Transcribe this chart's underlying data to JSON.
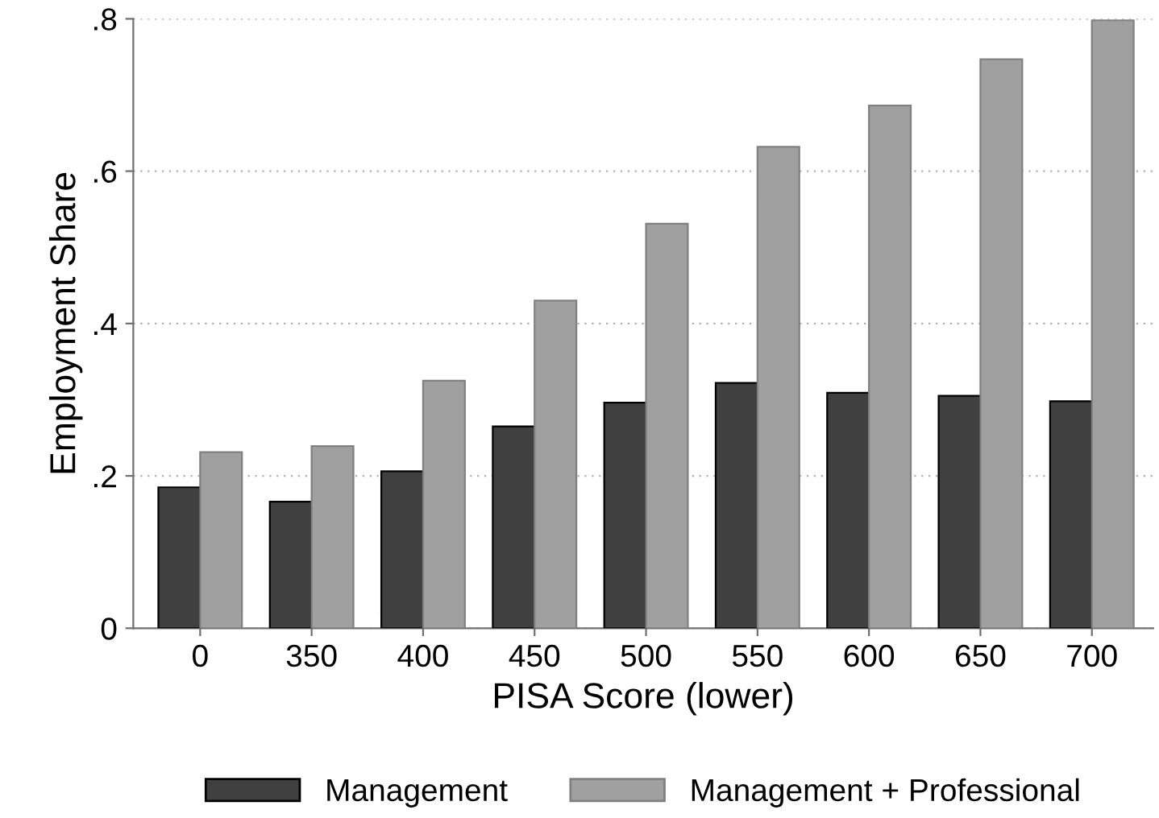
{
  "chart_data": {
    "type": "bar",
    "xlabel": "PISA Score (lower)",
    "ylabel": "Employment Share",
    "categories": [
      "0",
      "350",
      "400",
      "450",
      "500",
      "550",
      "600",
      "650",
      "700"
    ],
    "series": [
      {
        "name": "Management",
        "color": "#404040",
        "values": [
          0.185,
          0.166,
          0.206,
          0.265,
          0.296,
          0.322,
          0.309,
          0.305,
          0.298
        ]
      },
      {
        "name": "Management + Professional",
        "color": "#a0a0a0",
        "values": [
          0.231,
          0.239,
          0.325,
          0.43,
          0.531,
          0.632,
          0.686,
          0.747,
          0.798
        ]
      }
    ],
    "ylim": [
      0,
      0.8
    ],
    "yticks": [
      0,
      {
        "value": 0.2,
        "label": ".2"
      },
      {
        "value": 0.4,
        "label": ".4"
      },
      {
        "value": 0.6,
        "label": ".6"
      },
      {
        "value": 0.8,
        "label": ".8"
      }
    ],
    "grid": "y",
    "legend": "bottom"
  }
}
